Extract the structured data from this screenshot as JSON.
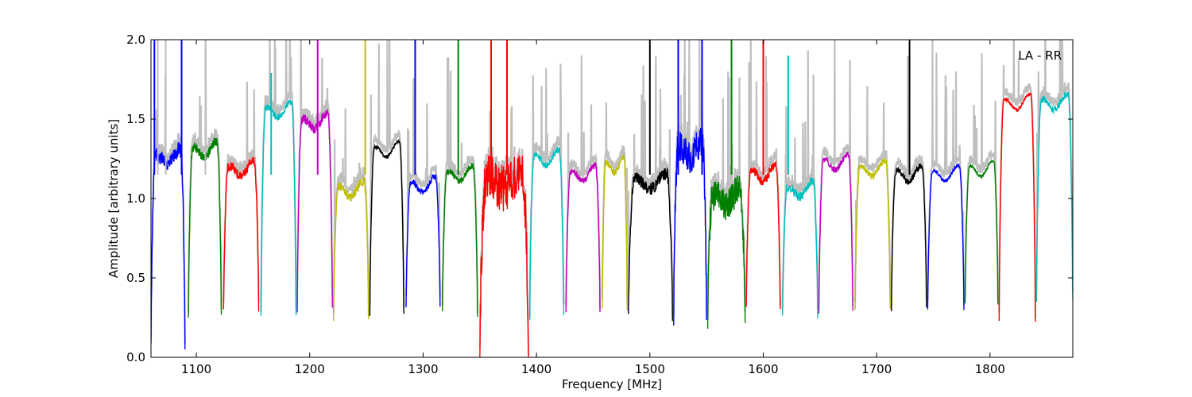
{
  "chart_data": {
    "type": "line",
    "title": "",
    "xlabel": "Frequency [MHz]",
    "ylabel": "Amplitude [arbitrary units]",
    "xlim": [
      1060,
      1873
    ],
    "ylim": [
      0.0,
      2.0
    ],
    "xticks": [
      1100,
      1200,
      1300,
      1400,
      1500,
      1600,
      1700,
      1800
    ],
    "yticks": [
      0.0,
      0.5,
      1.0,
      1.5,
      2.0
    ],
    "ytick_labels": [
      "0.0",
      "0.5",
      "1.0",
      "1.5",
      "2.0"
    ],
    "grid": false,
    "annotation": "LA - RR",
    "background_series_color": "#bfbfbf",
    "subbands": [
      {
        "start": 1060,
        "end": 1090,
        "color": "#0000ff",
        "level": 1.25,
        "min": 0.07,
        "noise": 0.05
      },
      {
        "start": 1093,
        "end": 1122,
        "color": "#008000",
        "level": 1.3,
        "min": 0.27,
        "noise": 0.03
      },
      {
        "start": 1124,
        "end": 1155,
        "color": "#ff0000",
        "level": 1.18,
        "min": 0.29,
        "noise": 0.03
      },
      {
        "start": 1157,
        "end": 1188,
        "color": "#00bfbf",
        "level": 1.55,
        "min": 0.26,
        "noise": 0.02
      },
      {
        "start": 1189,
        "end": 1220,
        "color": "#bf00bf",
        "level": 1.48,
        "min": 0.29,
        "noise": 0.03
      },
      {
        "start": 1221,
        "end": 1252,
        "color": "#bfbf00",
        "level": 1.05,
        "min": 0.25,
        "noise": 0.03
      },
      {
        "start": 1253,
        "end": 1283,
        "color": "#000000",
        "level": 1.3,
        "min": 0.27,
        "noise": 0.01
      },
      {
        "start": 1285,
        "end": 1315,
        "color": "#0000ff",
        "level": 1.08,
        "min": 0.3,
        "noise": 0.02
      },
      {
        "start": 1317,
        "end": 1348,
        "color": "#008000",
        "level": 1.15,
        "min": 0.27,
        "noise": 0.02
      },
      {
        "start": 1350,
        "end": 1393,
        "color": "#ff0000",
        "level": 1.1,
        "min": 0.0,
        "noise": 0.15
      },
      {
        "start": 1394,
        "end": 1424,
        "color": "#00bfbf",
        "level": 1.25,
        "min": 0.25,
        "noise": 0.02
      },
      {
        "start": 1426,
        "end": 1456,
        "color": "#bf00bf",
        "level": 1.15,
        "min": 0.29,
        "noise": 0.02
      },
      {
        "start": 1458,
        "end": 1480,
        "color": "#bfbf00",
        "level": 1.2,
        "min": 0.3,
        "noise": 0.02
      },
      {
        "start": 1481,
        "end": 1520,
        "color": "#000000",
        "level": 1.1,
        "min": 0.24,
        "noise": 0.04
      },
      {
        "start": 1521,
        "end": 1550,
        "color": "#0000ff",
        "level": 1.3,
        "min": 0.22,
        "noise": 0.1
      },
      {
        "start": 1551,
        "end": 1584,
        "color": "#008000",
        "level": 1.0,
        "min": 0.2,
        "noise": 0.1
      },
      {
        "start": 1585,
        "end": 1615,
        "color": "#ff0000",
        "level": 1.15,
        "min": 0.29,
        "noise": 0.03
      },
      {
        "start": 1617,
        "end": 1648,
        "color": "#00bfbf",
        "level": 1.05,
        "min": 0.26,
        "noise": 0.03
      },
      {
        "start": 1649,
        "end": 1679,
        "color": "#bf00bf",
        "level": 1.22,
        "min": 0.28,
        "noise": 0.02
      },
      {
        "start": 1681,
        "end": 1712,
        "color": "#bfbf00",
        "level": 1.18,
        "min": 0.29,
        "noise": 0.02
      },
      {
        "start": 1713,
        "end": 1744,
        "color": "#000000",
        "level": 1.15,
        "min": 0.3,
        "noise": 0.02
      },
      {
        "start": 1745,
        "end": 1777,
        "color": "#0000ff",
        "level": 1.15,
        "min": 0.3,
        "noise": 0.01
      },
      {
        "start": 1778,
        "end": 1807,
        "color": "#008000",
        "level": 1.18,
        "min": 0.33,
        "noise": 0.01
      },
      {
        "start": 1808,
        "end": 1840,
        "color": "#ff0000",
        "level": 1.6,
        "min": 0.22,
        "noise": 0.01
      },
      {
        "start": 1841,
        "end": 1873,
        "color": "#00bfbf",
        "level": 1.6,
        "min": 0.35,
        "noise": 0.02
      }
    ],
    "spikes": [
      {
        "x": 1063,
        "y": 2.0,
        "color": "#0000ff"
      },
      {
        "x": 1066,
        "y": 2.0,
        "color": "#bfbfbf"
      },
      {
        "x": 1073,
        "y": 2.0,
        "color": "#bfbfbf"
      },
      {
        "x": 1087,
        "y": 2.0,
        "color": "#0000ff"
      },
      {
        "x": 1108,
        "y": 2.0,
        "color": "#bfbfbf"
      },
      {
        "x": 1166,
        "y": 1.79,
        "color": "#00bfbf"
      },
      {
        "x": 1207,
        "y": 2.0,
        "color": "#bf00bf"
      },
      {
        "x": 1249,
        "y": 2.0,
        "color": "#bfbf00"
      },
      {
        "x": 1293,
        "y": 2.0,
        "color": "#0000ff"
      },
      {
        "x": 1331,
        "y": 2.0,
        "color": "#008000"
      },
      {
        "x": 1360,
        "y": 2.0,
        "color": "#ff0000"
      },
      {
        "x": 1374,
        "y": 2.0,
        "color": "#ff0000"
      },
      {
        "x": 1500,
        "y": 2.0,
        "color": "#000000"
      },
      {
        "x": 1525,
        "y": 2.0,
        "color": "#0000ff"
      },
      {
        "x": 1546,
        "y": 2.0,
        "color": "#0000ff"
      },
      {
        "x": 1572,
        "y": 2.0,
        "color": "#008000"
      },
      {
        "x": 1600,
        "y": 2.0,
        "color": "#ff0000"
      },
      {
        "x": 1622,
        "y": 1.9,
        "color": "#00bfbf"
      },
      {
        "x": 1729,
        "y": 2.0,
        "color": "#000000"
      }
    ]
  }
}
